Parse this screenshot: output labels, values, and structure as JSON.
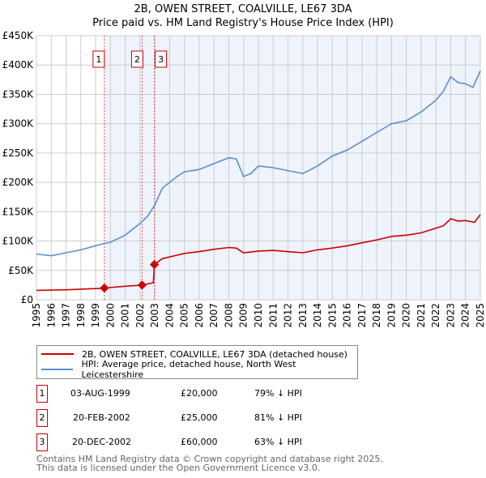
{
  "title": "2B, OWEN STREET, COALVILLE, LE67 3DA",
  "subtitle": "Price paid vs. HM Land Registry's House Price Index (HPI)",
  "colors": {
    "price": "#cc0000",
    "hpi": "#5b8fd0",
    "shade": "#eef3fc",
    "grid": "#cccccc"
  },
  "chart_data": {
    "type": "line",
    "xlim": [
      1995,
      2025
    ],
    "ylim": [
      0,
      450000
    ],
    "grid": true,
    "yticks": [
      0,
      50000,
      100000,
      150000,
      200000,
      250000,
      300000,
      350000,
      400000,
      450000
    ],
    "ytick_labels": [
      "£0",
      "£50K",
      "£100K",
      "£150K",
      "£200K",
      "£250K",
      "£300K",
      "£350K",
      "£400K",
      "£450K"
    ],
    "xticks": [
      1995,
      1996,
      1997,
      1998,
      1999,
      2000,
      2001,
      2002,
      2003,
      2004,
      2005,
      2006,
      2007,
      2008,
      2009,
      2010,
      2011,
      2012,
      2013,
      2014,
      2015,
      2016,
      2017,
      2018,
      2019,
      2020,
      2021,
      2022,
      2023,
      2024,
      2025
    ],
    "xtick_labels": [
      "1995",
      "1996",
      "1997",
      "1998",
      "1999",
      "2000",
      "2001",
      "2002",
      "2003",
      "2004",
      "2005",
      "2006",
      "2007",
      "2008",
      "2009",
      "2010",
      "2011",
      "2012",
      "2013",
      "2014",
      "2015",
      "2016",
      "2017",
      "2018",
      "2019",
      "2020",
      "2021",
      "2022",
      "2023",
      "2024",
      "2025"
    ],
    "series": [
      {
        "name": "2B, OWEN STREET, COALVILLE, LE67 3DA (detached house)",
        "key": "price",
        "x": [
          1995,
          1997,
          1999,
          1999.59,
          2001,
          2002.14,
          2002.9,
          2002.97,
          2003.5,
          2004,
          2005,
          2006,
          2007,
          2008,
          2008.5,
          2009,
          2010,
          2011,
          2012,
          2013,
          2014,
          2015,
          2016,
          2017,
          2018,
          2019,
          2020,
          2021,
          2022,
          2022.5,
          2023,
          2023.5,
          2024,
          2024.6,
          2025
        ],
        "y": [
          16000,
          17000,
          19000,
          20000,
          23000,
          25000,
          29000,
          60000,
          70000,
          73000,
          79000,
          82000,
          86000,
          89000,
          88000,
          80000,
          83000,
          84000,
          82000,
          80000,
          85000,
          88000,
          92000,
          97000,
          102000,
          108000,
          110000,
          114000,
          122000,
          126000,
          138000,
          134000,
          135000,
          132000,
          145000
        ]
      },
      {
        "name": "HPI: Average price, detached house, North West Leicestershire",
        "key": "hpi",
        "x": [
          1995,
          1996,
          1997,
          1998,
          1999,
          1999.59,
          2000,
          2001,
          2002,
          2002.5,
          2002.97,
          2003.5,
          2004,
          2004.5,
          2005,
          2006,
          2007,
          2008,
          2008.5,
          2009,
          2009.5,
          2010,
          2011,
          2012,
          2013,
          2014,
          2015,
          2016,
          2017,
          2018,
          2019,
          2020,
          2021,
          2022,
          2022.5,
          2023,
          2023.5,
          2024,
          2024.5,
          2025
        ],
        "y": [
          78000,
          75000,
          80000,
          85000,
          92000,
          96000,
          98000,
          110000,
          130000,
          142000,
          160000,
          190000,
          200000,
          210000,
          218000,
          222000,
          232000,
          242000,
          240000,
          210000,
          215000,
          228000,
          225000,
          220000,
          215000,
          228000,
          245000,
          255000,
          270000,
          285000,
          300000,
          305000,
          320000,
          340000,
          355000,
          380000,
          370000,
          368000,
          362000,
          390000
        ]
      }
    ],
    "sales": [
      {
        "label": "1",
        "x": 1999.59,
        "y": 20000
      },
      {
        "label": "2",
        "x": 2002.14,
        "y": 25000
      },
      {
        "label": "3",
        "x": 2002.97,
        "y": 60000
      }
    ],
    "shade_from": 1999.59
  },
  "legend": {
    "price_label": "2B, OWEN STREET, COALVILLE, LE67 3DA (detached house)",
    "hpi_label": "HPI: Average price, detached house, North West Leicestershire"
  },
  "sales_table": [
    {
      "num": "1",
      "date": "03-AUG-1999",
      "price": "£20,000",
      "hpi": "79% ↓ HPI"
    },
    {
      "num": "2",
      "date": "20-FEB-2002",
      "price": "£25,000",
      "hpi": "81% ↓ HPI"
    },
    {
      "num": "3",
      "date": "20-DEC-2002",
      "price": "£60,000",
      "hpi": "63% ↓ HPI"
    }
  ],
  "footer": {
    "line1": "Contains HM Land Registry data © Crown copyright and database right 2025.",
    "line2": "This data is licensed under the Open Government Licence v3.0."
  }
}
